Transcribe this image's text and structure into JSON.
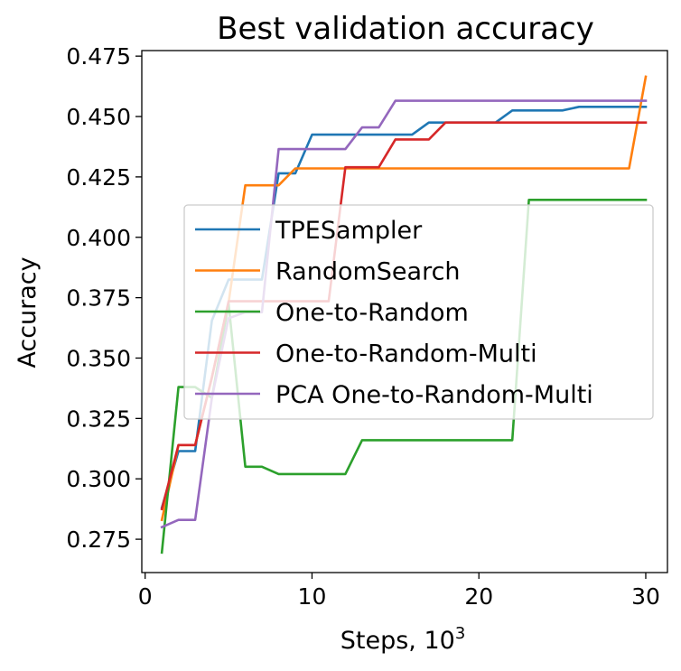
{
  "chart_data": {
    "type": "line",
    "title": "Best validation accuracy",
    "xlabel": "Steps, 10",
    "xlabel_superscript": "3",
    "ylabel": "Accuracy",
    "xlim": [
      -0.2,
      31.3
    ],
    "ylim": [
      0.2612,
      0.4773
    ],
    "xticks": [
      0,
      10,
      20,
      30
    ],
    "yticks": [
      0.275,
      0.3,
      0.325,
      0.35,
      0.375,
      0.4,
      0.425,
      0.45,
      0.475
    ],
    "ytick_labels": [
      "0.275",
      "0.300",
      "0.325",
      "0.350",
      "0.375",
      "0.400",
      "0.425",
      "0.450",
      "0.475"
    ],
    "grid": false,
    "legend_position": "center-right",
    "x": [
      1,
      2,
      3,
      4,
      5,
      6,
      7,
      8,
      9,
      10,
      11,
      12,
      13,
      14,
      15,
      16,
      17,
      18,
      19,
      20,
      21,
      22,
      23,
      24,
      25,
      26,
      27,
      28,
      29,
      30
    ],
    "series": [
      {
        "name": "TPESampler",
        "color": "#1f77b4",
        "values": [
          0.288,
          0.3115,
          0.3115,
          0.3655,
          0.3825,
          0.3825,
          0.3825,
          0.4265,
          0.4265,
          0.4425,
          0.4425,
          0.4425,
          0.4425,
          0.4425,
          0.4425,
          0.4425,
          0.4475,
          0.4475,
          0.4475,
          0.4475,
          0.4475,
          0.4525,
          0.4525,
          0.4525,
          0.4525,
          0.454,
          0.454,
          0.454,
          0.454,
          0.454
        ]
      },
      {
        "name": "RandomSearch",
        "color": "#ff7f0e",
        "values": [
          0.283,
          0.314,
          0.314,
          0.342,
          0.373,
          0.4215,
          0.4215,
          0.4215,
          0.4285,
          0.4285,
          0.4285,
          0.4285,
          0.4285,
          0.4285,
          0.4285,
          0.4285,
          0.4285,
          0.4285,
          0.4285,
          0.4285,
          0.4285,
          0.4285,
          0.4285,
          0.4285,
          0.4285,
          0.4285,
          0.4285,
          0.4285,
          0.4285,
          0.4665
        ]
      },
      {
        "name": "One-to-Random",
        "color": "#2ca02c",
        "values": [
          0.2695,
          0.338,
          0.338,
          0.3335,
          0.3725,
          0.305,
          0.305,
          0.302,
          0.302,
          0.302,
          0.302,
          0.302,
          0.316,
          0.316,
          0.316,
          0.316,
          0.316,
          0.316,
          0.316,
          0.316,
          0.316,
          0.316,
          0.4155,
          0.4155,
          0.4155,
          0.4155,
          0.4155,
          0.4155,
          0.4155,
          0.4155
        ]
      },
      {
        "name": "One-to-Random-Multi",
        "color": "#d62728",
        "values": [
          0.2875,
          0.314,
          0.314,
          0.342,
          0.3735,
          0.3735,
          0.3735,
          0.3735,
          0.3735,
          0.3735,
          0.3735,
          0.429,
          0.429,
          0.429,
          0.4405,
          0.4405,
          0.4405,
          0.4475,
          0.4475,
          0.4475,
          0.4475,
          0.4475,
          0.4475,
          0.4475,
          0.4475,
          0.4475,
          0.4475,
          0.4475,
          0.4475,
          0.4475
        ]
      },
      {
        "name": "PCA One-to-Random-Multi",
        "color": "#9467bd",
        "values": [
          0.28,
          0.283,
          0.283,
          0.3335,
          0.3665,
          0.369,
          0.369,
          0.4365,
          0.4365,
          0.4365,
          0.4365,
          0.4365,
          0.4455,
          0.4455,
          0.4565,
          0.4565,
          0.4565,
          0.4565,
          0.4565,
          0.4565,
          0.4565,
          0.4565,
          0.4565,
          0.4565,
          0.4565,
          0.4565,
          0.4565,
          0.4565,
          0.4565,
          0.4565
        ]
      }
    ]
  }
}
